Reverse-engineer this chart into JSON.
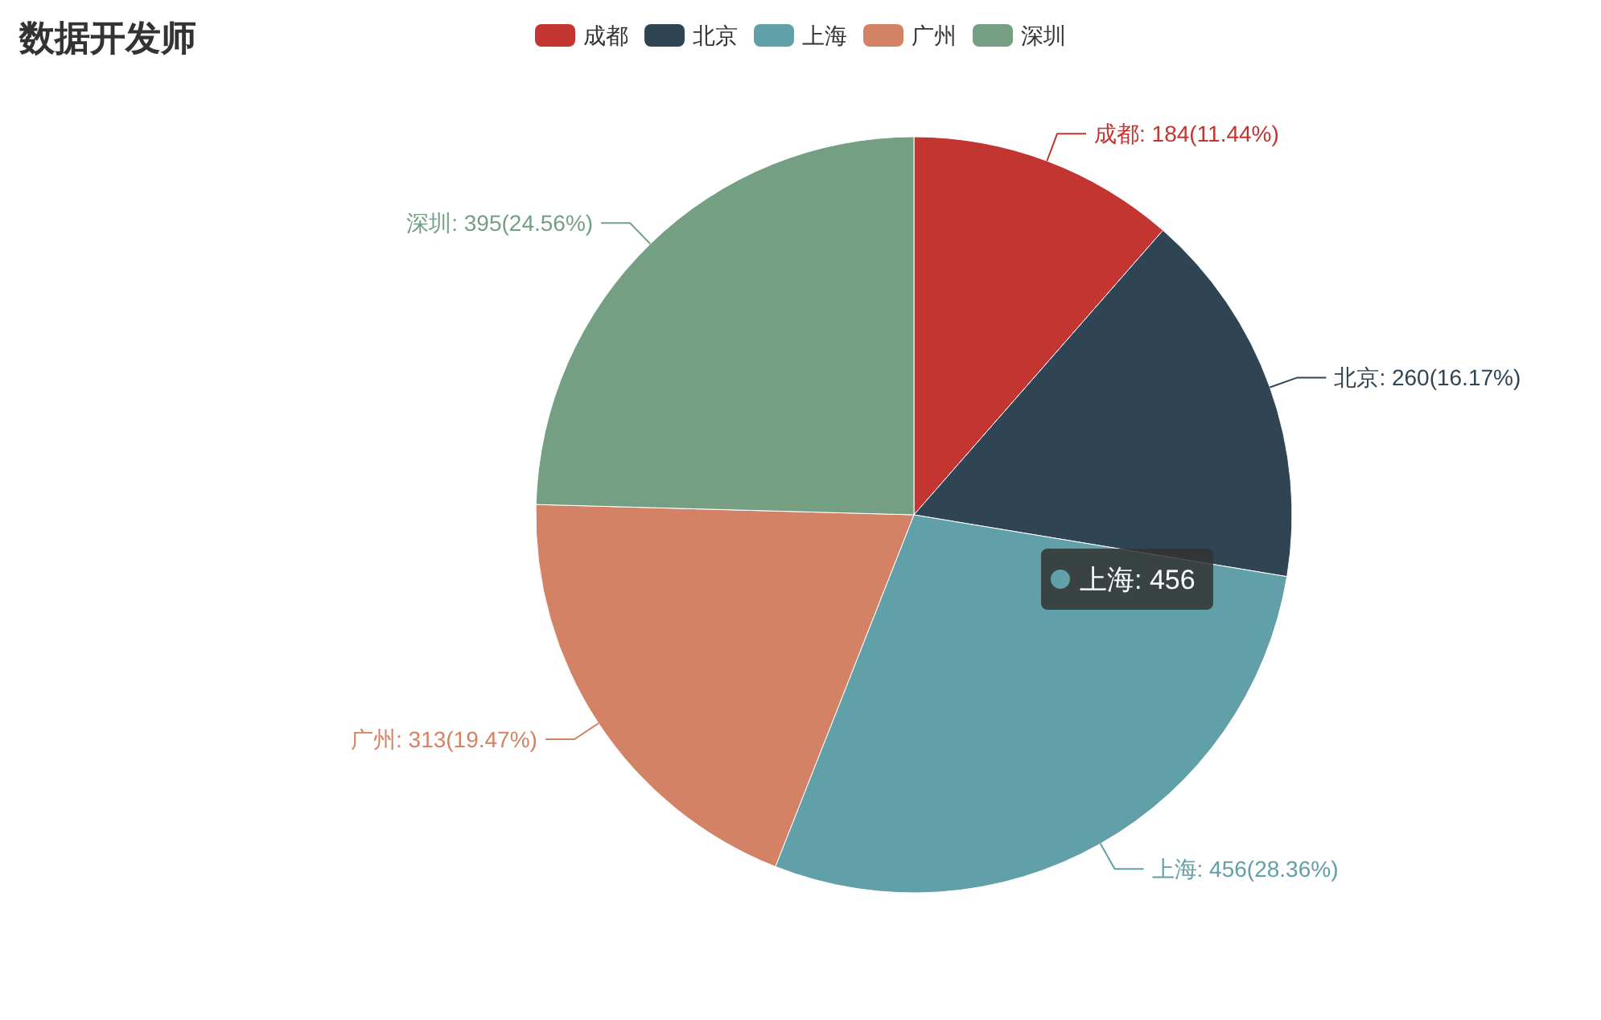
{
  "chart_data": {
    "type": "pie",
    "title": "数据开发师",
    "categories": [
      "成都",
      "北京",
      "上海",
      "广州",
      "深圳"
    ],
    "values": [
      184,
      260,
      456,
      313,
      395
    ],
    "value_labels": [
      "成都: 184(11.44%)",
      "北京: 260(16.17%)",
      "上海: 456(28.36%)",
      "广州: 313(19.47%)",
      "深圳: 395(24.56%)"
    ],
    "colors": [
      "#c23531",
      "#2f4554",
      "#61a0a8",
      "#d48265",
      "#749f83"
    ],
    "legend": "top",
    "annotations": [
      "上海: 456"
    ]
  }
}
